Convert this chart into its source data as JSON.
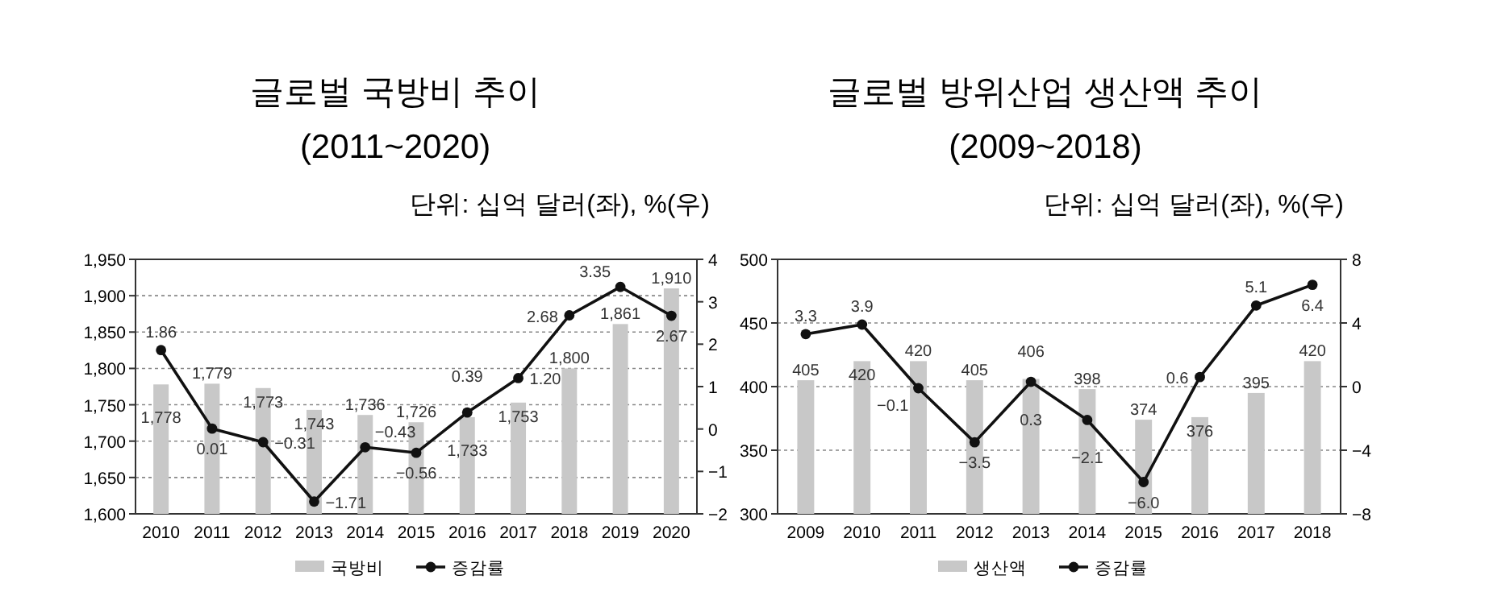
{
  "chart_data": [
    {
      "type": "bar",
      "title": "글로벌 국방비 추이",
      "subtitle": "(2011~2020)",
      "annotations": [
        "단위: 십억 달러(좌), %(우)"
      ],
      "categories": [
        "2010",
        "2011",
        "2012",
        "2013",
        "2014",
        "2015",
        "2016",
        "2017",
        "2018",
        "2019",
        "2020"
      ],
      "series": [
        {
          "name": "국방비",
          "color": "#c8c8c8",
          "values": [
            1778,
            1779,
            1773,
            1743,
            1736,
            1726,
            1733,
            1753,
            1800,
            1861,
            1910
          ],
          "value_labels": [
            "1,778",
            "1,779",
            "1,773",
            "1,743",
            "1,736",
            "1,726",
            "1,733",
            "1,753",
            "1,800",
            "1,861",
            "1,910"
          ]
        },
        {
          "name": "증감률",
          "type": "line",
          "axis": "y2",
          "color": "#111111",
          "marker": "circle",
          "values": [
            1.86,
            0.01,
            -0.31,
            -1.71,
            -0.43,
            -0.56,
            0.39,
            1.2,
            2.68,
            3.35,
            2.67
          ],
          "value_labels": [
            "1.86",
            "0.01",
            "−0.31",
            "−1.71",
            "−0.43",
            "−0.56",
            "0.39",
            "1.20",
            "2.68",
            "3.35",
            "2.67"
          ]
        }
      ],
      "ylim": [
        1600,
        1950
      ],
      "yticks": [
        {
          "value": 1600,
          "label": "1,600"
        },
        {
          "value": 1650,
          "label": "1,650"
        },
        {
          "value": 1700,
          "label": "1,700"
        },
        {
          "value": 1750,
          "label": "1,750"
        },
        {
          "value": 1800,
          "label": "1,800"
        },
        {
          "value": 1850,
          "label": "1,850"
        },
        {
          "value": 1900,
          "label": "1,900"
        },
        {
          "value": 1950,
          "label": "1,950"
        }
      ],
      "y2lim": [
        -2,
        4
      ],
      "y2ticks": [
        {
          "value": -2,
          "label": "−2"
        },
        {
          "value": -1,
          "label": "−1"
        },
        0,
        1,
        2,
        3,
        4
      ],
      "grid": "y",
      "legend": "bottom"
    },
    {
      "type": "bar",
      "title": "글로벌 방위산업 생산액 추이",
      "subtitle": "(2009~2018)",
      "annotations": [
        "단위: 십억 달러(좌), %(우)"
      ],
      "categories": [
        "2009",
        "2010",
        "2011",
        "2012",
        "2013",
        "2014",
        "2015",
        "2016",
        "2017",
        "2018"
      ],
      "series": [
        {
          "name": "생산액",
          "color": "#c8c8c8",
          "values": [
            405,
            420,
            420,
            405,
            406,
            398,
            374,
            376,
            395,
            420
          ],
          "value_labels": [
            "405",
            "420",
            "420",
            "405",
            "406",
            "398",
            "374",
            "376",
            "395",
            "420"
          ]
        },
        {
          "name": "증감률",
          "type": "line",
          "axis": "y2",
          "color": "#111111",
          "marker": "circle",
          "values": [
            3.3,
            3.9,
            -0.1,
            -3.5,
            0.3,
            -2.1,
            -6.0,
            0.6,
            5.1,
            6.4
          ],
          "value_labels": [
            "3.3",
            "3.9",
            "−0.1",
            "−3.5",
            "0.3",
            "−2.1",
            "−6.0",
            "0.6",
            "5.1",
            "6.4"
          ]
        }
      ],
      "ylim": [
        300,
        500
      ],
      "yticks": [
        300,
        350,
        400,
        450,
        500
      ],
      "y2lim": [
        -8,
        8
      ],
      "y2ticks": [
        {
          "value": -8,
          "label": "−8"
        },
        {
          "value": -4,
          "label": "−4"
        },
        0,
        4,
        8
      ],
      "grid": "y",
      "legend": "bottom"
    }
  ]
}
